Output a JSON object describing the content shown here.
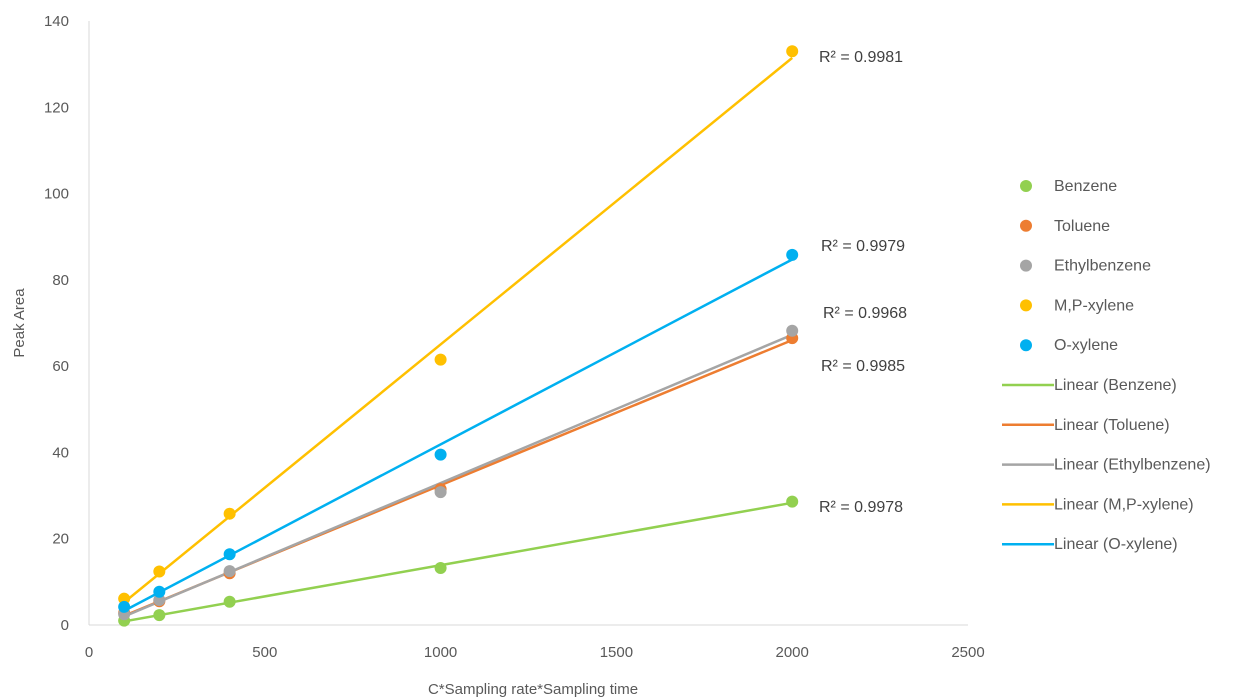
{
  "chart_data": {
    "type": "scatter",
    "title": "",
    "xlabel": "C*Sampling rate*Sampling time",
    "ylabel": "Peak Area",
    "xlim": [
      0,
      2500
    ],
    "ylim": [
      0,
      140
    ],
    "xticks": [
      0,
      500,
      1000,
      1500,
      2000,
      2500
    ],
    "yticks": [
      0,
      20,
      40,
      60,
      80,
      100,
      120,
      140
    ],
    "grid": false,
    "legend_position": "right",
    "x": [
      100,
      200,
      400,
      1000,
      2000
    ],
    "series": [
      {
        "name": "Benzene",
        "color": "#92D050",
        "values": [
          1.0,
          2.3,
          5.4,
          13.2,
          28.6
        ],
        "r2": "R² = 0.9978"
      },
      {
        "name": "Toluene",
        "color": "#ED7D31",
        "values": [
          2.8,
          5.5,
          12.0,
          31.5,
          66.5
        ],
        "r2": "R² = 0.9985"
      },
      {
        "name": "Ethylbenzene",
        "color": "#A5A5A5",
        "values": [
          2.5,
          5.8,
          12.5,
          30.8,
          68.2
        ],
        "r2": "R² = 0.9968"
      },
      {
        "name": "M,P-xylene",
        "color": "#FFC000",
        "values": [
          6.1,
          12.4,
          25.8,
          61.5,
          133.0
        ],
        "r2": "R² = 0.9981"
      },
      {
        "name": "O-xylene",
        "color": "#00B0F0",
        "values": [
          4.2,
          7.7,
          16.4,
          39.5,
          85.8
        ],
        "r2": "R² = 0.9979"
      }
    ],
    "trendlines": [
      {
        "name": "Linear (Benzene)",
        "series": "Benzene",
        "color": "#92D050",
        "type": "linear"
      },
      {
        "name": "Linear (Toluene)",
        "series": "Toluene",
        "color": "#ED7D31",
        "type": "linear"
      },
      {
        "name": "Linear (Ethylbenzene)",
        "series": "Ethylbenzene",
        "color": "#A5A5A5",
        "type": "linear"
      },
      {
        "name": "Linear (M,P-xylene)",
        "series": "M,P-xylene",
        "color": "#FFC000",
        "type": "linear"
      },
      {
        "name": "Linear (O-xylene)",
        "series": "O-xylene",
        "color": "#00B0F0",
        "type": "linear"
      }
    ]
  }
}
